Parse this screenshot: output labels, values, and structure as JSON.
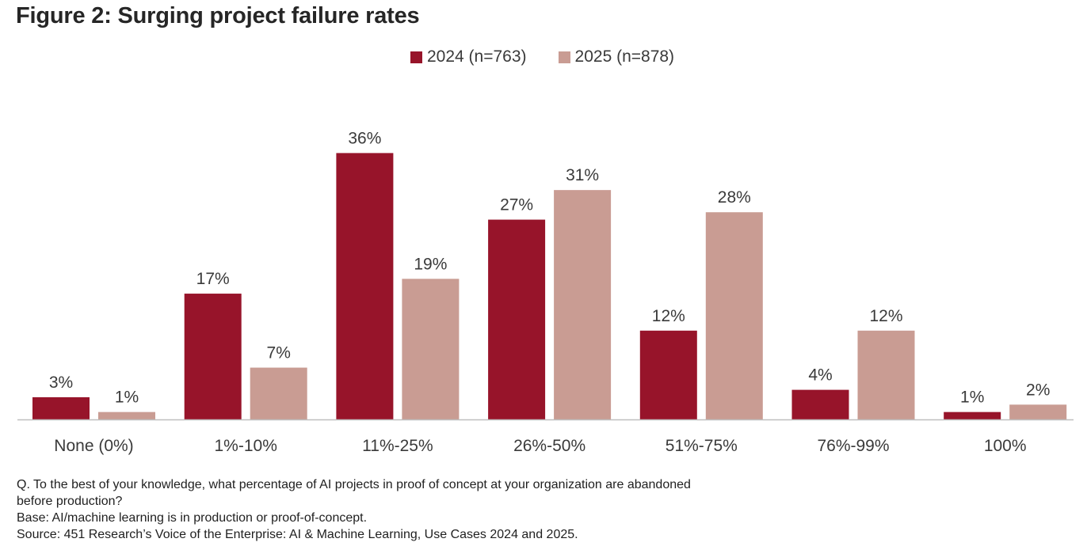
{
  "title": "Figure 2: Surging project failure rates",
  "colors": {
    "series_2024": "#97142a",
    "series_2025": "#c99c93",
    "axis": "#bfbfbf",
    "text": "#3a3a3a"
  },
  "legend": {
    "items": [
      {
        "label": "2024 (n=763)"
      },
      {
        "label": "2025 (n=878)"
      }
    ]
  },
  "chart_data": {
    "type": "bar",
    "title": "Figure 2: Surging project failure rates",
    "xlabel": "",
    "ylabel": "",
    "ylim": [
      0,
      40
    ],
    "grid": false,
    "legend_position": "top-center",
    "categories": [
      "None (0%)",
      "1%-10%",
      "11%-25%",
      "26%-50%",
      "51%-75%",
      "76%-99%",
      "100%"
    ],
    "series": [
      {
        "name": "2024 (n=763)",
        "values": [
          3,
          17,
          36,
          27,
          12,
          4,
          1
        ],
        "labels": [
          "3%",
          "17%",
          "36%",
          "27%",
          "12%",
          "4%",
          "1%"
        ]
      },
      {
        "name": "2025 (n=878)",
        "values": [
          1,
          7,
          19,
          31,
          28,
          12,
          2
        ],
        "labels": [
          "1%",
          "7%",
          "19%",
          "31%",
          "28%",
          "12%",
          "2%"
        ]
      }
    ]
  },
  "footnotes": {
    "question": "Q. To the best of your knowledge, what percentage of AI projects in proof of concept at your organization are abandoned\nbefore production?",
    "base": "Base: AI/machine learning is in production or proof-of-concept.",
    "source": "Source: 451 Research’s Voice of the Enterprise: AI & Machine Learning, Use Cases 2024 and 2025."
  }
}
